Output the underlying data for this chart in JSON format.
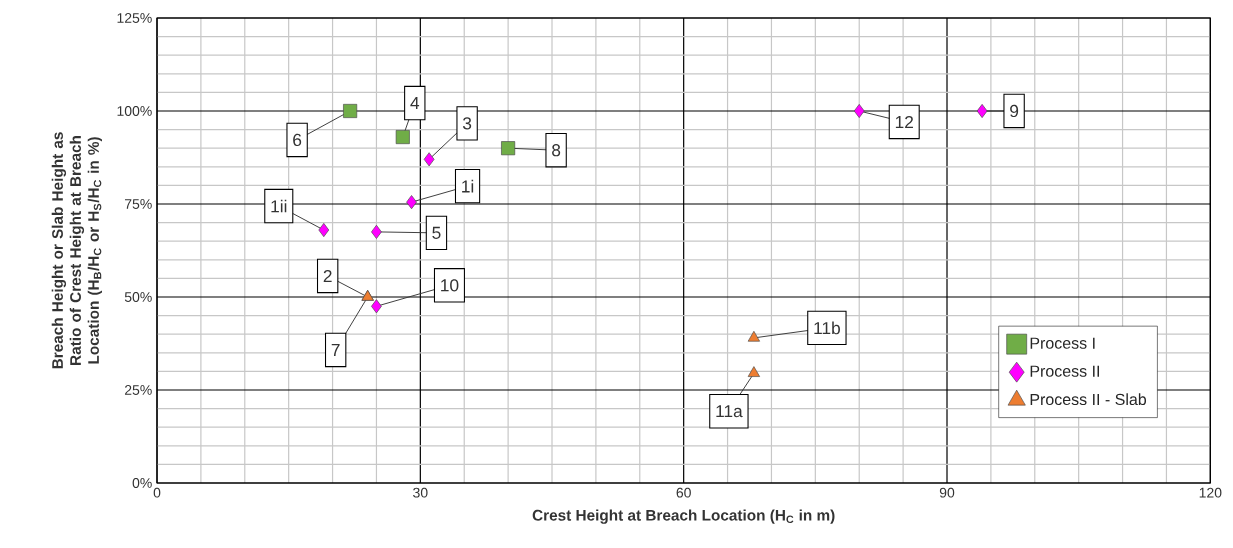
{
  "chart_data": {
    "type": "scatter",
    "xlabel": "Crest Height at Breach Location (H$_{C}$ in m)",
    "ylabel": "Breach Height or Slab Height as Ratio of Crest Height at Breach Location (H$_{B}$/H$_{C}$ or H$_{S}$/H$_{C}$ in %)",
    "xlim": [
      0,
      120
    ],
    "xticks": [
      0,
      30,
      60,
      90,
      120
    ],
    "ylim": [
      0,
      125
    ],
    "yticks": [
      {
        "value": 0,
        "label": "0%"
      },
      {
        "value": 25,
        "label": "25%"
      },
      {
        "value": 50,
        "label": "50%"
      },
      {
        "value": 75,
        "label": "75%"
      },
      {
        "value": 100,
        "label": "100%"
      },
      {
        "value": 125,
        "label": "125%"
      }
    ],
    "grid": true,
    "legend": "bottom right",
    "series": [
      {
        "name": "Process I",
        "color": "#70ad47",
        "marker": "square",
        "x": [
          22,
          28,
          40
        ],
        "values": [
          100,
          93,
          90
        ]
      },
      {
        "name": "Process II",
        "color": "#ff00ff",
        "marker": "diamond",
        "x": [
          31,
          29,
          19,
          25,
          25,
          80,
          94
        ],
        "values": [
          87,
          75.5,
          68,
          67.5,
          47.5,
          100,
          100
        ]
      },
      {
        "name": "Process II - Slab",
        "color": "#ed7d31",
        "marker": "triangle",
        "x": [
          24,
          24,
          68,
          68
        ],
        "values": [
          50,
          50,
          39,
          29.5
        ]
      }
    ],
    "annotations": [
      {
        "text": "6",
        "x": 22,
        "y": 100
      },
      {
        "text": "4",
        "x": 28,
        "y": 93
      },
      {
        "text": "3",
        "x": 31,
        "y": 87
      },
      {
        "text": "8",
        "x": 40,
        "y": 90
      },
      {
        "text": "1i",
        "x": 29,
        "y": 75.5
      },
      {
        "text": "1ii",
        "x": 19,
        "y": 68
      },
      {
        "text": "5",
        "x": 25,
        "y": 67.5
      },
      {
        "text": "2",
        "x": 24,
        "y": 50
      },
      {
        "text": "7",
        "x": 24,
        "y": 50
      },
      {
        "text": "10",
        "x": 25,
        "y": 47.5
      },
      {
        "text": "12",
        "x": 80,
        "y": 100
      },
      {
        "text": "9",
        "x": 94,
        "y": 100
      },
      {
        "text": "11b",
        "x": 68,
        "y": 39
      },
      {
        "text": "11a",
        "x": 68,
        "y": 29.5
      }
    ]
  }
}
